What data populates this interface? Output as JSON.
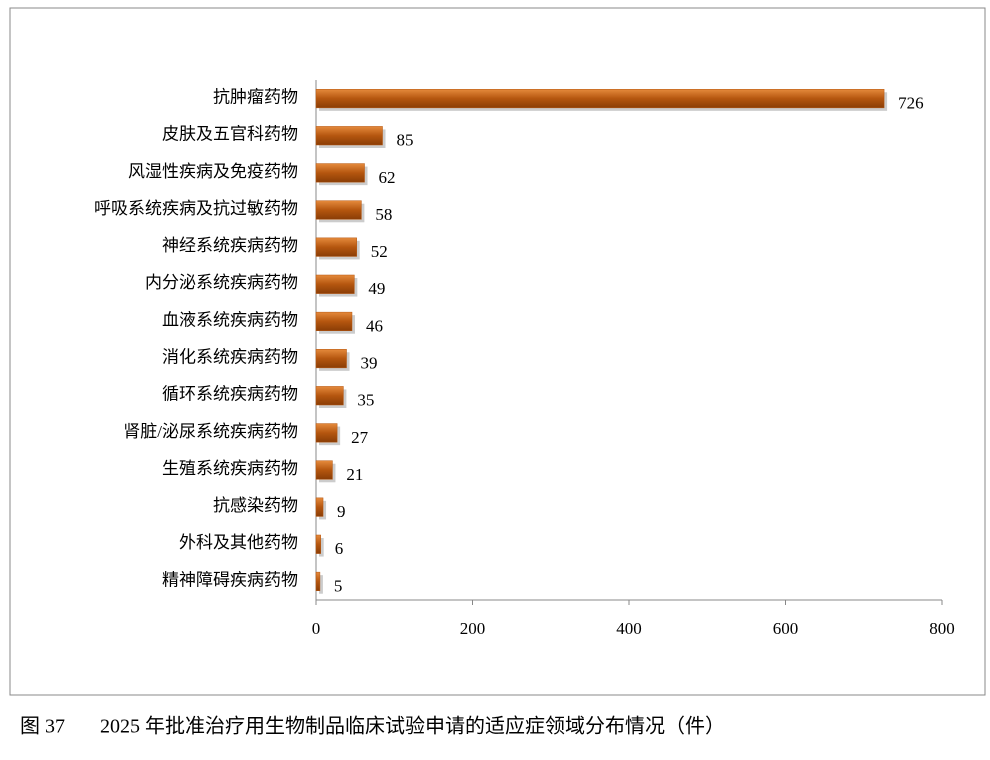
{
  "chart_data": {
    "type": "hbar",
    "caption_label": "图 37",
    "title": "2025 年批准治疗用生物制品临床试验申请的适应症领域分布情况（件）",
    "categories": [
      "抗肿瘤药物",
      "皮肤及五官科药物",
      "风湿性疾病及免疫药物",
      "呼吸系统疾病及抗过敏药物",
      "神经系统疾病药物",
      "内分泌系统疾病药物",
      "血液系统疾病药物",
      "消化系统疾病药物",
      "循环系统疾病药物",
      "肾脏/泌尿系统疾病药物",
      "生殖系统疾病药物",
      "抗感染药物",
      "外科及其他药物",
      "精神障碍疾病药物"
    ],
    "values": [
      726,
      85,
      62,
      58,
      52,
      49,
      46,
      39,
      35,
      27,
      21,
      9,
      6,
      5
    ],
    "color": "#b5560f",
    "label_color": "#d9731f",
    "xlim": [
      0,
      800
    ],
    "xticks": [
      0,
      200,
      400,
      600,
      800
    ],
    "grid": false
  }
}
